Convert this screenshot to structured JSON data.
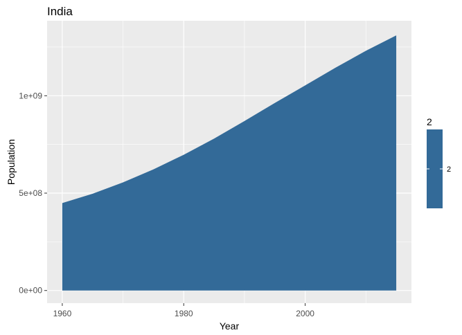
{
  "chart_data": {
    "type": "area",
    "title": "India",
    "xlabel": "Year",
    "ylabel": "Population",
    "xlim": [
      1957.5,
      2017.5
    ],
    "ylim": [
      -65000000,
      1385000000
    ],
    "x_ticks": [
      1960,
      1980,
      2000
    ],
    "x_tick_labels": [
      "1960",
      "1980",
      "2000"
    ],
    "y_ticks": [
      0,
      500000000,
      1000000000
    ],
    "y_tick_labels": [
      "0e+00",
      "5e+08",
      "1e+09"
    ],
    "grid": true,
    "legend": {
      "position": "right",
      "title": "2",
      "labels": [
        "2"
      ]
    },
    "fill_color": "#336A98",
    "panel_color": "#EBEBEB",
    "series": [
      {
        "x": [
          1960,
          1965,
          1970,
          1975,
          1980,
          1985,
          1990,
          1995,
          2000,
          2005,
          2010,
          2015
        ],
        "values": [
          449000000,
          497000000,
          555000000,
          622000000,
          697000000,
          780000000,
          870000000,
          963000000,
          1053000000,
          1144000000,
          1231000000,
          1310000000
        ]
      }
    ]
  }
}
